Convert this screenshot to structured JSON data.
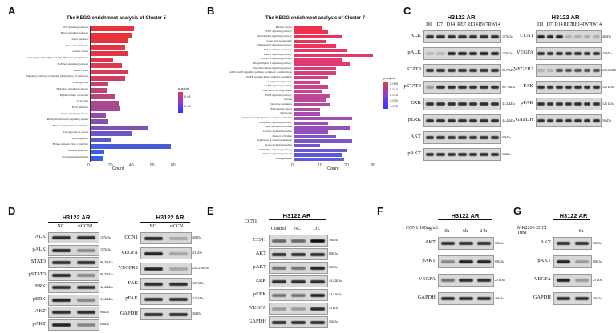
{
  "panels": {
    "A": "A",
    "B": "B",
    "C": "C",
    "D": "D",
    "E": "E",
    "F": "F",
    "G": "G"
  },
  "panelA": {
    "title": "The KEGG enrichment analysis of Cluster 5",
    "xlabel": "Count",
    "legend_title": "p.adjust",
    "legend_ticks": [
      "0.01",
      "0.02"
    ],
    "terms": [
      "Wnt signaling pathway",
      "Hippo signaling pathway",
      "Axon guidance",
      "Basal cell carcinoma",
      "Gastric cancer",
      "Glycosylphosphatidylinositol (GPI)-anchor biosynthesis",
      "TGF-beta signaling pathway",
      "Breast cancer",
      "Signaling pathways regulating pluripotency of stem cells",
      "Proteoglycans",
      "Hedgehog signaling pathway",
      "Hepatocellular carcinoma",
      "Lysosome",
      "Focal adhesion",
      "Notch signaling pathway",
      "Phosphatidylinositol signaling system",
      "Human papillomavirus infection",
      "Proteoglycans in cancer",
      "Melanogenesis",
      "Herpes simplex virus 1 infection",
      "Adherens junction",
      "Peroxisome metabolism"
    ],
    "xticks": [
      "0",
      "20",
      "40",
      "60",
      "80"
    ]
  },
  "panelB": {
    "title": "The KEGG enrichment analysis of Cluster 7",
    "xlabel": "Count",
    "legend_title": "p.adjust",
    "legend_ticks": [
      "0.005",
      "0.010",
      "0.015",
      "0.020",
      "0.025"
    ],
    "terms": [
      "Bladder cancer",
      "VEGF signaling pathway",
      "Neurotrophin signaling pathway",
      "Long-term potentiation",
      "Sphingolipid signaling pathway",
      "Hepatocellular carcinoma",
      "MAPK signaling pathway",
      "Oxytocin signaling pathway",
      "Phospholipase D signaling pathway",
      "Thyroid hormone signaling pathway",
      "AGE-RAGE signaling pathway in diabetic complications",
      "EGFR tyrosine kinase inhibitor resistance",
      "Long-term depression",
      "GnRH signaling pathway",
      "Non-small cell lung cancer",
      "ErbB signaling pathway",
      "Glioma",
      "Endocrine resistance",
      "Endometrial cancer",
      "Melanoma",
      "Chemical carcinogenesis - receptor activation",
      "GMP-PKG signaling pathway",
      "Lipid and atherosclerosis",
      "Chronic myeloid leukemia",
      "Platelet activation",
      "Regulation of actin cytoskeleton",
      "Acute myeloid leukemia",
      "cAMP-PKG signaling pathway",
      "Relaxin signaling pathway",
      "Axon guidance"
    ],
    "xticks": [
      "0",
      "10",
      "20",
      "30"
    ]
  },
  "panelC": {
    "title1": "H3122 AR",
    "title2": "H3122 AR",
    "lanes": [
      "D0",
      "D7",
      "D14",
      "RE7",
      "RE14",
      "RW7",
      "RW14"
    ],
    "left_rows": [
      {
        "name": "ALK",
        "kda": "117kDa"
      },
      {
        "name": "pALK",
        "kda": "117kDa"
      },
      {
        "name": "STAT3",
        "kda": "86,79kDa"
      },
      {
        "name": "pSTAT3",
        "kda": "86,79kDa"
      },
      {
        "name": "ERK",
        "kda": "44,42kDa"
      },
      {
        "name": "pERK",
        "kda": "44,42kDa"
      },
      {
        "name": "AKT",
        "kda": "60kDa"
      },
      {
        "name": "pAKT",
        "kda": "60kDa"
      }
    ],
    "right_rows": [
      {
        "name": "CCN1",
        "kda": "40kDa"
      },
      {
        "name": "VEGFA",
        "kda": "23 kDa"
      },
      {
        "name": "VEGFR2",
        "kda": "230,210kDa"
      },
      {
        "name": "FAK",
        "kda": "125 kDa"
      },
      {
        "name": "pFAK",
        "kda": "125 kDa"
      },
      {
        "name": "GAPDH",
        "kda": "36kDa"
      }
    ]
  },
  "panelD": {
    "title1": "H3122 AR",
    "title2": "H3122 AR",
    "lanes1": [
      "NC",
      "siCCN1"
    ],
    "lanes2": [
      "NC",
      "siCCN1"
    ],
    "left_rows": [
      {
        "name": "ALK",
        "kda": "117kDa"
      },
      {
        "name": "pALK",
        "kda": "117kDa"
      },
      {
        "name": "STAT3",
        "kda": "86,79kDa"
      },
      {
        "name": "pSTAT3",
        "kda": "86,79kDa"
      },
      {
        "name": "ERK",
        "kda": "44,42kDa"
      },
      {
        "name": "pERK",
        "kda": "44,42kDa"
      },
      {
        "name": "AKT",
        "kda": "60kDa"
      },
      {
        "name": "pAKT",
        "kda": "60kDa"
      }
    ],
    "right_rows": [
      {
        "name": "CCN1",
        "kda": "40kDa"
      },
      {
        "name": "VEGFA",
        "kda": "23 kDa"
      },
      {
        "name": "VEGFR2",
        "kda": "230,210kDa"
      },
      {
        "name": "FAK",
        "kda": "125 kDa"
      },
      {
        "name": "pFAK",
        "kda": "125 kDa"
      },
      {
        "name": "GAPDH",
        "kda": "36kDa"
      }
    ]
  },
  "panelE": {
    "title": "H3122 AR",
    "treatment": "CCN1",
    "lanes": [
      "Control",
      "NC",
      "OE"
    ],
    "rows": [
      {
        "name": "CCN1",
        "kda": "40kDa"
      },
      {
        "name": "AKT",
        "kda": "60kDa"
      },
      {
        "name": "pAKT",
        "kda": "60kDa"
      },
      {
        "name": "ERK",
        "kda": "44,42kDa"
      },
      {
        "name": "pERK",
        "kda": "44,42kDa"
      },
      {
        "name": "VEGFA",
        "kda": "23 kDa"
      },
      {
        "name": "GAPDH",
        "kda": "36kDa"
      }
    ]
  },
  "panelF": {
    "title": "H3122 AR",
    "treatment": "CCN1 100ng/ml",
    "lanes": [
      "0h",
      "6h",
      "24h"
    ],
    "rows": [
      {
        "name": "AKT",
        "kda": "60kDa"
      },
      {
        "name": "pAKT",
        "kda": "60kDa"
      },
      {
        "name": "VEGFA",
        "kda": "23 kDa"
      },
      {
        "name": "GAPDH",
        "kda": "36kDa"
      }
    ]
  },
  "panelG": {
    "title": "H3122 AR",
    "treatment": "MK2206 2HCl 1uM",
    "lanes": [
      "-",
      "6h"
    ],
    "rows": [
      {
        "name": "AKT",
        "kda": "60kDa"
      },
      {
        "name": "pAKT",
        "kda": "60kDa"
      },
      {
        "name": "VEGFA",
        "kda": "23 kDa"
      },
      {
        "name": "GAPDH",
        "kda": "36kDa"
      }
    ]
  },
  "chart_data": [
    {
      "type": "bar",
      "title": "The KEGG enrichment analysis of Cluster 5",
      "xlabel": "Count",
      "ylabel": "",
      "xlim": [
        0,
        80
      ],
      "categories": [
        "Wnt signaling pathway",
        "Hippo signaling pathway",
        "Axon guidance",
        "Basal cell carcinoma",
        "Gastric cancer",
        "Glycosylphosphatidylinositol (GPI)-anchor biosynthesis",
        "TGF-beta signaling pathway",
        "Breast cancer",
        "Signaling pathways regulating pluripotency of stem cells",
        "Proteoglycans",
        "Hedgehog signaling pathway",
        "Hepatocellular carcinoma",
        "Lysosome",
        "Focal adhesion",
        "Notch signaling pathway",
        "Phosphatidylinositol signaling system",
        "Human papillomavirus infection",
        "Proteoglycans in cancer",
        "Melanogenesis",
        "Herpes simplex virus 1 infection",
        "Adherens junction",
        "Peroxisome metabolism"
      ],
      "values": [
        42,
        40,
        37,
        34,
        36,
        22,
        31,
        36,
        34,
        18,
        16,
        24,
        28,
        29,
        15,
        18,
        55,
        40,
        20,
        78,
        14,
        12
      ],
      "colors": [
        "#e8333c",
        "#e8333c",
        "#e5343f",
        "#e43542",
        "#e03748",
        "#dd384c",
        "#da3a52",
        "#d43c5a",
        "#ce3e63",
        "#c7416c",
        "#c04375",
        "#b8457f",
        "#ae4889",
        "#a24a94",
        "#954da0",
        "#884fac",
        "#7b52b8",
        "#6c55c4",
        "#5e58cf",
        "#4a5ad9",
        "#3e5ce2",
        "#345eea"
      ]
    },
    {
      "type": "bar",
      "title": "The KEGG enrichment analysis of Cluster 7",
      "xlabel": "Count",
      "ylabel": "",
      "xlim": [
        0,
        32
      ],
      "categories": [
        "Bladder cancer",
        "VEGF signaling pathway",
        "Neurotrophin signaling pathway",
        "Long-term potentiation",
        "Sphingolipid signaling pathway",
        "Hepatocellular carcinoma",
        "MAPK signaling pathway",
        "Oxytocin signaling pathway",
        "Phospholipase D signaling pathway",
        "Thyroid hormone signaling pathway",
        "AGE-RAGE signaling pathway in diabetic complications",
        "EGFR tyrosine kinase inhibitor resistance",
        "Long-term depression",
        "GnRH signaling pathway",
        "Non-small cell lung cancer",
        "ErbB signaling pathway",
        "Glioma",
        "Endocrine resistance",
        "Endometrial cancer",
        "Melanoma",
        "Chemical carcinogenesis - receptor activation",
        "GMP-PKG signaling pathway",
        "Lipid and atherosclerosis",
        "Chronic myeloid leukemia",
        "Platelet activation",
        "Regulation of actin cytoskeleton",
        "Acute myeloid leukemia",
        "cAMP-PKG signaling pathway",
        "Relaxin signaling pathway",
        "Axon guidance"
      ],
      "values": [
        11,
        13,
        18,
        12,
        16,
        20,
        30,
        18,
        21,
        16,
        16,
        13,
        10,
        13,
        11,
        14,
        12,
        14,
        10,
        10,
        22,
        13,
        21,
        13,
        16,
        22,
        10,
        20,
        18,
        19
      ],
      "colors": [
        "#f0304a",
        "#ee3150",
        "#ec3355",
        "#ea345a",
        "#e8365f",
        "#e63764",
        "#e33969",
        "#e03a6e",
        "#dd3c73",
        "#d93d78",
        "#d63f7d",
        "#d24082",
        "#ce4287",
        "#ca438c",
        "#c54591",
        "#c04696",
        "#bb489b",
        "#b549a0",
        "#b04ba5",
        "#aa4caa",
        "#a34eaf",
        "#9c4fb4",
        "#9551b9",
        "#8e52be",
        "#8654c3",
        "#7d55c8",
        "#7457cd",
        "#6a58d2",
        "#6055d8",
        "#5a5fe0"
      ]
    }
  ]
}
